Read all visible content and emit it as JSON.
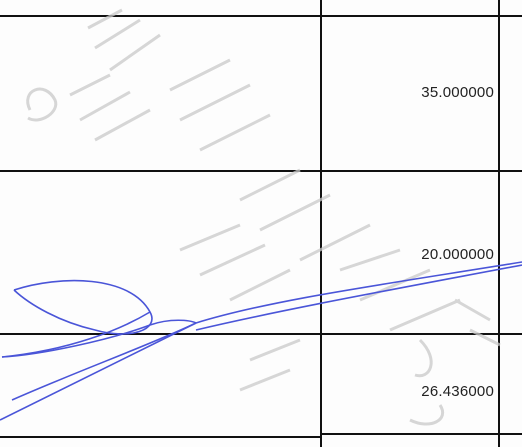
{
  "table": {
    "rows": [
      {
        "value": "35.000000"
      },
      {
        "value": "20.000000"
      },
      {
        "value": "26.436000"
      }
    ]
  },
  "signature": {
    "ink_color": "#4a55d8"
  },
  "stamp": {
    "ink_color": "#c9c9c9"
  }
}
